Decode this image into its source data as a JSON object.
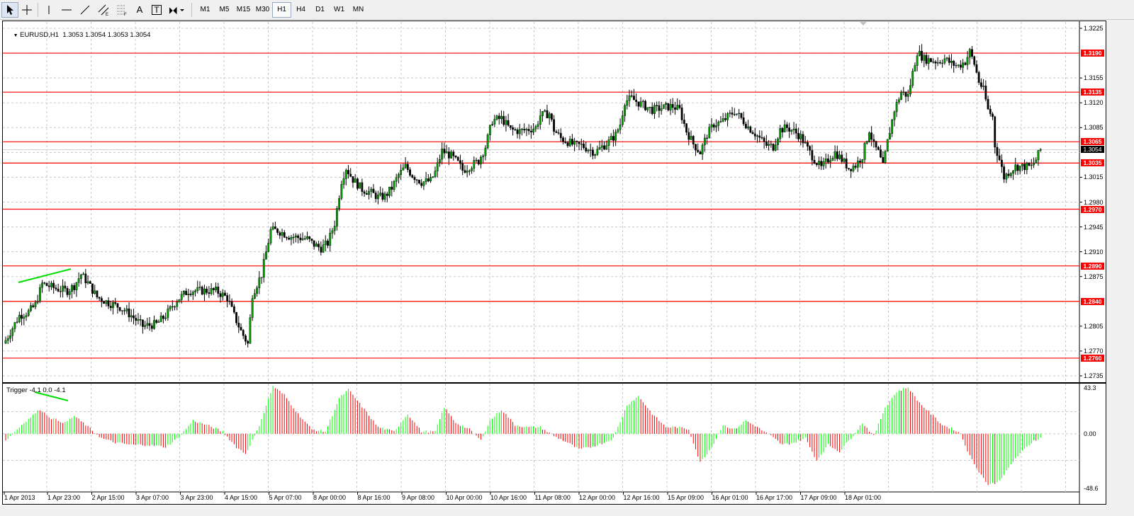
{
  "toolbar": {
    "tools": [
      {
        "name": "cursor",
        "icon": "cursor-arrow-icon",
        "pressed": true
      },
      {
        "name": "crosshair",
        "icon": "crosshair-icon",
        "pressed": false
      },
      {
        "name": "vertical-line",
        "icon": "vertical-line-icon",
        "pressed": false
      },
      {
        "name": "horizontal-line",
        "icon": "horizontal-line-icon",
        "pressed": false
      },
      {
        "name": "trendline",
        "icon": "trendline-icon",
        "pressed": false
      },
      {
        "name": "equidistant-channel",
        "icon": "channel-icon",
        "pressed": false
      },
      {
        "name": "fibonacci",
        "icon": "fibonacci-icon",
        "pressed": false
      },
      {
        "name": "text",
        "icon": "text-icon",
        "label": "A",
        "pressed": false
      },
      {
        "name": "text-label",
        "icon": "text-label-icon",
        "label": "T",
        "pressed": false
      },
      {
        "name": "arrows",
        "icon": "arrows-dropdown-icon",
        "pressed": false
      }
    ],
    "timeframes": [
      "M1",
      "M5",
      "M15",
      "M30",
      "H1",
      "H4",
      "D1",
      "W1",
      "MN"
    ],
    "active_timeframe": "H1"
  },
  "main_chart": {
    "header": "EURUSD,H1  1.3053 1.3054 1.3053 1.3054",
    "current_price": "1.3054",
    "price_axis": [
      "1.3225",
      "1.3155",
      "1.3120",
      "1.3085",
      "1.3015",
      "1.2980",
      "1.2945",
      "1.2910",
      "1.2875",
      "1.2805",
      "1.2770",
      "1.2735"
    ],
    "levels": [
      "1.3190",
      "1.3135",
      "1.3065",
      "1.3035",
      "1.2970",
      "1.2890",
      "1.2840",
      "1.2760"
    ],
    "colors": {
      "level": "#ff0000",
      "bull_candle": "#00a000",
      "bear_candle": "#000000",
      "trend": "#00dd00"
    }
  },
  "indicator": {
    "header": "Trigger -4.1 0.0 -4.1",
    "axis": [
      "43.3",
      "0.00",
      "-48.6"
    ],
    "colors": {
      "positive": "#00ff00",
      "negative": "#ff0000"
    }
  },
  "time_axis": [
    "1 Apr 2013",
    "1 Apr 23:00",
    "2 Apr 15:00",
    "3 Apr 07:00",
    "3 Apr 23:00",
    "4 Apr 15:00",
    "5 Apr 07:00",
    "8 Apr 00:00",
    "8 Apr 16:00",
    "9 Apr 08:00",
    "10 Apr 00:00",
    "10 Apr 16:00",
    "11 Apr 08:00",
    "12 Apr 00:00",
    "12 Apr 16:00",
    "15 Apr 09:00",
    "16 Apr 01:00",
    "16 Apr 17:00",
    "17 Apr 09:00",
    "18 Apr 01:00"
  ],
  "chart_data": {
    "type": "candlestick",
    "symbol": "EURUSD",
    "timeframe": "H1",
    "ylim": [
      1.2727,
      1.3234
    ],
    "grid": true,
    "close_path": [
      [
        0,
        1.2785
      ],
      [
        6,
        1.282
      ],
      [
        10,
        1.2825
      ],
      [
        13,
        1.2835
      ],
      [
        16,
        1.2865
      ],
      [
        22,
        1.2858
      ],
      [
        27,
        1.2855
      ],
      [
        30,
        1.2862
      ],
      [
        33,
        1.2878
      ],
      [
        36,
        1.2866
      ],
      [
        40,
        1.2846
      ],
      [
        45,
        1.2838
      ],
      [
        50,
        1.2832
      ],
      [
        55,
        1.282
      ],
      [
        60,
        1.2805
      ],
      [
        66,
        1.2808
      ],
      [
        70,
        1.282
      ],
      [
        75,
        1.2842
      ],
      [
        80,
        1.2855
      ],
      [
        85,
        1.2855
      ],
      [
        92,
        1.2855
      ],
      [
        97,
        1.2845
      ],
      [
        100,
        1.282
      ],
      [
        103,
        1.2798
      ],
      [
        106,
        1.278
      ],
      [
        108,
        1.285
      ],
      [
        112,
        1.2878
      ],
      [
        116,
        1.294
      ],
      [
        119,
        1.294
      ],
      [
        124,
        1.2932
      ],
      [
        128,
        1.293
      ],
      [
        132,
        1.2928
      ],
      [
        135,
        1.292
      ],
      [
        138,
        1.2915
      ],
      [
        141,
        1.2922
      ],
      [
        144,
        1.295
      ],
      [
        147,
        1.301
      ],
      [
        149,
        1.3028
      ],
      [
        152,
        1.3012
      ],
      [
        156,
        1.2998
      ],
      [
        160,
        1.2993
      ],
      [
        163,
        1.2987
      ],
      [
        166,
        1.2988
      ],
      [
        169,
        1.3
      ],
      [
        172,
        1.3018
      ],
      [
        175,
        1.303
      ],
      [
        178,
        1.3018
      ],
      [
        182,
        1.3008
      ],
      [
        186,
        1.301
      ],
      [
        188,
        1.3022
      ],
      [
        191,
        1.3052
      ],
      [
        195,
        1.3045
      ],
      [
        198,
        1.3035
      ],
      [
        200,
        1.3025
      ],
      [
        203,
        1.303
      ],
      [
        207,
        1.3038
      ],
      [
        210,
        1.3058
      ],
      [
        213,
        1.3095
      ],
      [
        217,
        1.3098
      ],
      [
        221,
        1.3082
      ],
      [
        225,
        1.308
      ],
      [
        228,
        1.3082
      ],
      [
        232,
        1.3085
      ],
      [
        234,
        1.3102
      ],
      [
        238,
        1.3105
      ],
      [
        240,
        1.3082
      ],
      [
        243,
        1.307
      ],
      [
        246,
        1.3065
      ],
      [
        249,
        1.306
      ],
      [
        252,
        1.306
      ],
      [
        255,
        1.3055
      ],
      [
        258,
        1.305
      ],
      [
        261,
        1.3058
      ],
      [
        264,
        1.3065
      ],
      [
        267,
        1.3075
      ],
      [
        269,
        1.309
      ],
      [
        271,
        1.3122
      ],
      [
        274,
        1.3126
      ],
      [
        277,
        1.312
      ],
      [
        280,
        1.3115
      ],
      [
        283,
        1.311
      ],
      [
        286,
        1.3112
      ],
      [
        289,
        1.3114
      ],
      [
        292,
        1.3115
      ],
      [
        295,
        1.311
      ],
      [
        298,
        1.308
      ],
      [
        301,
        1.3062
      ],
      [
        304,
        1.305
      ],
      [
        307,
        1.3075
      ],
      [
        310,
        1.309
      ],
      [
        313,
        1.3092
      ],
      [
        316,
        1.31
      ],
      [
        319,
        1.3108
      ],
      [
        322,
        1.3098
      ],
      [
        325,
        1.3086
      ],
      [
        327,
        1.308
      ],
      [
        330,
        1.307
      ],
      [
        333,
        1.306
      ],
      [
        336,
        1.3058
      ],
      [
        339,
        1.3082
      ],
      [
        342,
        1.3085
      ],
      [
        345,
        1.308
      ],
      [
        348,
        1.3072
      ],
      [
        351,
        1.3055
      ],
      [
        354,
        1.304
      ],
      [
        357,
        1.3028
      ],
      [
        360,
        1.304
      ],
      [
        363,
        1.305
      ],
      [
        366,
        1.304
      ],
      [
        369,
        1.3028
      ],
      [
        372,
        1.3032
      ],
      [
        375,
        1.3045
      ],
      [
        378,
        1.3082
      ],
      [
        380,
        1.306
      ],
      [
        382,
        1.305
      ],
      [
        384,
        1.303
      ],
      [
        386,
        1.3065
      ],
      [
        389,
        1.311
      ],
      [
        392,
        1.3135
      ],
      [
        395,
        1.313
      ],
      [
        397,
        1.3162
      ],
      [
        399,
        1.3192
      ],
      [
        402,
        1.3182
      ],
      [
        405,
        1.318
      ],
      [
        408,
        1.3178
      ],
      [
        411,
        1.3182
      ],
      [
        414,
        1.3175
      ],
      [
        417,
        1.3172
      ],
      [
        420,
        1.3178
      ],
      [
        422,
        1.3192
      ],
      [
        424,
        1.3175
      ],
      [
        426,
        1.315
      ],
      [
        428,
        1.3138
      ],
      [
        430,
        1.311
      ],
      [
        432,
        1.31
      ],
      [
        433,
        1.306
      ],
      [
        435,
        1.304
      ],
      [
        437,
        1.3015
      ],
      [
        439,
        1.3022
      ],
      [
        442,
        1.303
      ],
      [
        446,
        1.303
      ],
      [
        449,
        1.303
      ],
      [
        451,
        1.304
      ],
      [
        453,
        1.3054
      ]
    ],
    "indicator": {
      "name": "Trigger",
      "values_header": [
        -4.1,
        0.0,
        -4.1
      ],
      "ylim": [
        -48.6,
        43.3
      ],
      "path": [
        [
          0,
          -6
        ],
        [
          8,
          10
        ],
        [
          15,
          22
        ],
        [
          20,
          14
        ],
        [
          26,
          10
        ],
        [
          30,
          16
        ],
        [
          35,
          8
        ],
        [
          42,
          -4
        ],
        [
          48,
          -8
        ],
        [
          55,
          -10
        ],
        [
          62,
          -10
        ],
        [
          70,
          -12
        ],
        [
          76,
          -3
        ],
        [
          82,
          12
        ],
        [
          88,
          8
        ],
        [
          95,
          2
        ],
        [
          101,
          -12
        ],
        [
          105,
          -18
        ],
        [
          110,
          2
        ],
        [
          117,
          43
        ],
        [
          122,
          35
        ],
        [
          128,
          18
        ],
        [
          134,
          4
        ],
        [
          140,
          2
        ],
        [
          146,
          32
        ],
        [
          150,
          40
        ],
        [
          157,
          22
        ],
        [
          163,
          6
        ],
        [
          170,
          2
        ],
        [
          176,
          18
        ],
        [
          182,
          2
        ],
        [
          188,
          2
        ],
        [
          192,
          24
        ],
        [
          197,
          10
        ],
        [
          203,
          4
        ],
        [
          208,
          -6
        ],
        [
          212,
          12
        ],
        [
          217,
          22
        ],
        [
          223,
          8
        ],
        [
          228,
          6
        ],
        [
          234,
          6
        ],
        [
          240,
          -2
        ],
        [
          246,
          -8
        ],
        [
          251,
          -14
        ],
        [
          256,
          -12
        ],
        [
          262,
          -8
        ],
        [
          266,
          -4
        ],
        [
          272,
          26
        ],
        [
          277,
          34
        ],
        [
          283,
          18
        ],
        [
          289,
          6
        ],
        [
          294,
          6
        ],
        [
          299,
          4
        ],
        [
          304,
          -26
        ],
        [
          309,
          -12
        ],
        [
          314,
          8
        ],
        [
          319,
          4
        ],
        [
          324,
          12
        ],
        [
          329,
          6
        ],
        [
          335,
          -2
        ],
        [
          340,
          -10
        ],
        [
          345,
          -8
        ],
        [
          350,
          -4
        ],
        [
          355,
          -24
        ],
        [
          360,
          -10
        ],
        [
          365,
          -16
        ],
        [
          370,
          -4
        ],
        [
          375,
          10
        ],
        [
          380,
          -2
        ],
        [
          385,
          24
        ],
        [
          390,
          38
        ],
        [
          395,
          42
        ],
        [
          400,
          28
        ],
        [
          405,
          18
        ],
        [
          410,
          8
        ],
        [
          415,
          4
        ],
        [
          418,
          0
        ],
        [
          422,
          -20
        ],
        [
          426,
          -34
        ],
        [
          430,
          -46
        ],
        [
          434,
          -44
        ],
        [
          438,
          -34
        ],
        [
          442,
          -22
        ],
        [
          446,
          -14
        ],
        [
          450,
          -6
        ],
        [
          453,
          -4
        ]
      ]
    },
    "series": [
      {
        "values": [
          1.3054
        ]
      }
    ]
  }
}
